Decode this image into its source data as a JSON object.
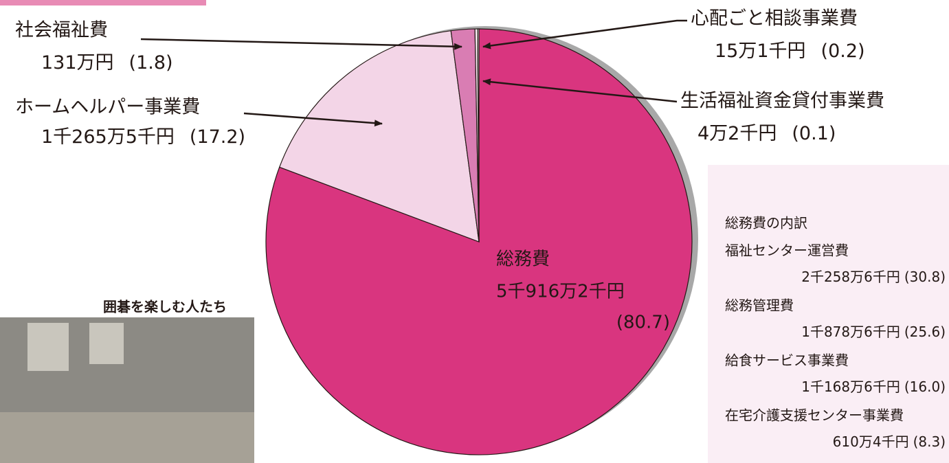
{
  "chart_data": {
    "type": "pie",
    "categories": [
      "総務費",
      "ホームヘルパー事業費",
      "社会福祉費",
      "心配ごと相談事業費",
      "生活福祉資金貸付事業費"
    ],
    "amounts": [
      "5千916万2千円",
      "1千265万5千円",
      "131万円",
      "15万1千円",
      "4万2千円"
    ],
    "values": [
      80.7,
      17.2,
      1.8,
      0.2,
      0.1
    ],
    "value_labels": [
      "(80.7)",
      "(17.2)",
      "(1.8)",
      "(0.2)",
      "(0.1)"
    ],
    "colors": [
      "#d9357f",
      "#f3d5e7",
      "#d97db3",
      "#fbeef5",
      "#ffffff"
    ],
    "breakdown": {
      "title": "総務費の内訳",
      "items": [
        {
          "name": "福祉センター運営費",
          "amount": "2千258万6千円",
          "share": "(30.8)"
        },
        {
          "name": "総務管理費",
          "amount": "1千878万6千円",
          "share": "(25.6)"
        },
        {
          "name": "給食サービス事業費",
          "amount": "1千168万6千円",
          "share": "(16.0)"
        },
        {
          "name": "在宅介護支援センター事業費",
          "amount": "610万4千円",
          "share": "(8.3)"
        }
      ]
    },
    "photo_caption": "囲碁を楽しむ人たち"
  }
}
